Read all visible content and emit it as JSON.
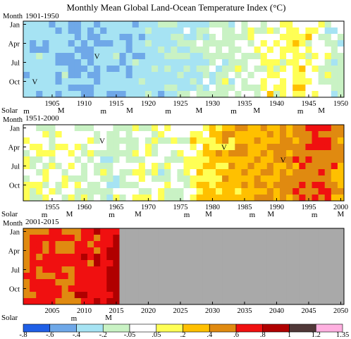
{
  "chart_data": {
    "type": "heatmap",
    "title": "Monthly Mean Global Land-Ocean Temperature Index (°C)",
    "ylabel": "Month",
    "month_ticks": [
      "Jan",
      "Apr",
      "Jul",
      "Oct"
    ],
    "solar_label": "Solar",
    "legend": {
      "bins": [
        {
          "min": -0.8,
          "max": -0.6,
          "color": "#1f5fe6"
        },
        {
          "min": -0.6,
          "max": -0.4,
          "color": "#6fa8e8"
        },
        {
          "min": -0.4,
          "max": -0.2,
          "color": "#a6e3f3"
        },
        {
          "min": -0.2,
          "max": -0.05,
          "color": "#c9f2c4"
        },
        {
          "min": -0.05,
          "max": 0.05,
          "color": "#ffffff"
        },
        {
          "min": 0.05,
          "max": 0.2,
          "color": "#ffff55"
        },
        {
          "min": 0.2,
          "max": 0.4,
          "color": "#ffc000"
        },
        {
          "min": 0.4,
          "max": 0.6,
          "color": "#e08a10"
        },
        {
          "min": 0.6,
          "max": 0.8,
          "color": "#f01010"
        },
        {
          "min": 0.8,
          "max": 1.0,
          "color": "#b00000"
        },
        {
          "min": 1.0,
          "max": 1.2,
          "color": "#503838"
        },
        {
          "min": 1.2,
          "max": 1.35,
          "color": "#ffb0e0"
        }
      ],
      "tick_labels": [
        "-.8",
        "-.6",
        "-.4",
        "-.2",
        "-.05",
        ".05",
        ".2",
        ".4",
        ".6",
        ".8",
        "1",
        "1.2",
        "1.35"
      ]
    },
    "no_data_color": "#a9a9a9",
    "panels": [
      {
        "label": "1901-1950",
        "start_year": 1901,
        "end_year": 1950,
        "year_ticks": [
          "1905",
          "1910",
          "1915",
          "1920",
          "1925",
          "1930",
          "1935",
          "1940",
          "1945",
          "1950"
        ],
        "solar": [
          {
            "year": 1901.5,
            "type": "m"
          },
          {
            "year": 1906.9,
            "type": "M"
          },
          {
            "year": 1913.5,
            "type": "m"
          },
          {
            "year": 1917.6,
            "type": "M"
          },
          {
            "year": 1923.6,
            "type": "m"
          },
          {
            "year": 1928.4,
            "type": "M"
          },
          {
            "year": 1933.8,
            "type": "m"
          },
          {
            "year": 1937.4,
            "type": "M"
          },
          {
            "year": 1944.2,
            "type": "m"
          },
          {
            "year": 1947.5,
            "type": "M"
          }
        ],
        "volcanoes": [
          {
            "year": 1902.8,
            "month": 10
          },
          {
            "year": 1912.5,
            "month": 6
          }
        ],
        "anomaly_trend": [
          [
            1901,
            -0.3
          ],
          [
            1910,
            -0.42
          ],
          [
            1920,
            -0.28
          ],
          [
            1930,
            -0.15
          ],
          [
            1938,
            0.0
          ],
          [
            1944,
            0.12
          ],
          [
            1950,
            -0.15
          ]
        ]
      },
      {
        "label": "1951-2000",
        "start_year": 1951,
        "end_year": 2000,
        "year_ticks": [
          "1955",
          "1960",
          "1965",
          "1970",
          "1975",
          "1980",
          "1985",
          "1990",
          "1995",
          "2000"
        ],
        "solar": [
          {
            "year": 1954.3,
            "type": "m"
          },
          {
            "year": 1958.2,
            "type": "M"
          },
          {
            "year": 1964.8,
            "type": "m"
          },
          {
            "year": 1968.9,
            "type": "M"
          },
          {
            "year": 1976.5,
            "type": "m"
          },
          {
            "year": 1979.9,
            "type": "M"
          },
          {
            "year": 1986.7,
            "type": "m"
          },
          {
            "year": 1989.6,
            "type": "M"
          },
          {
            "year": 1996.4,
            "type": "m"
          },
          {
            "year": 2000.5,
            "type": "M"
          }
        ],
        "volcanoes": [
          {
            "year": 1963.3,
            "month": 3
          },
          {
            "year": 1982.3,
            "month": 4
          },
          {
            "year": 1991.5,
            "month": 6
          }
        ],
        "anomaly_trend": [
          [
            1951,
            -0.02
          ],
          [
            1960,
            -0.02
          ],
          [
            1965,
            -0.12
          ],
          [
            1970,
            0.0
          ],
          [
            1976,
            -0.05
          ],
          [
            1980,
            0.25
          ],
          [
            1990,
            0.42
          ],
          [
            1998,
            0.62
          ],
          [
            2000,
            0.42
          ]
        ]
      },
      {
        "label": "2001-2015",
        "start_year": 2001,
        "end_year": 2050,
        "data_end_year": 2015,
        "year_ticks": [
          "2005",
          "2010",
          "2015",
          "2020",
          "2025",
          "2030",
          "2035",
          "2040",
          "2045",
          "2050"
        ],
        "solar": [
          {
            "year": 2008.9,
            "type": "m"
          },
          {
            "year": 2014.3,
            "type": "M"
          }
        ],
        "volcanoes": [],
        "anomaly_trend": [
          [
            2001,
            0.54
          ],
          [
            2005,
            0.68
          ],
          [
            2008,
            0.54
          ],
          [
            2010,
            0.7
          ],
          [
            2014,
            0.74
          ],
          [
            2015,
            0.9
          ]
        ]
      }
    ]
  }
}
